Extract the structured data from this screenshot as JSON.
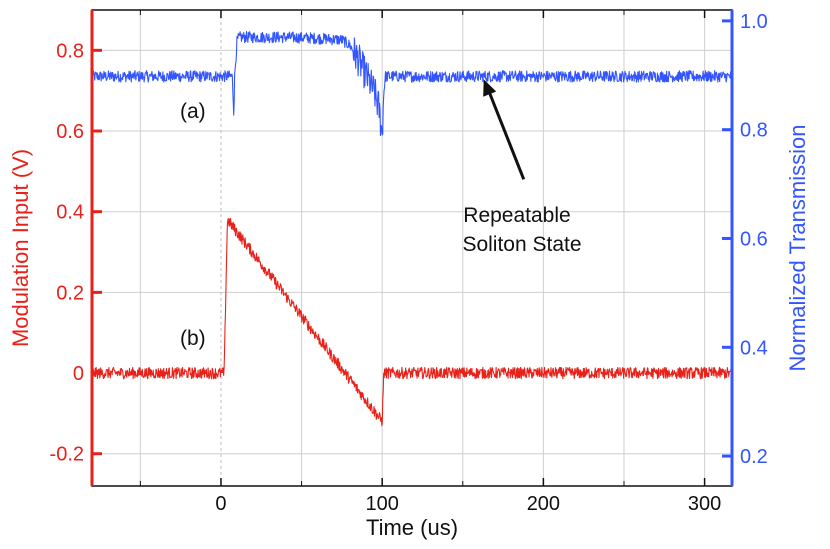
{
  "chart_data": {
    "type": "line",
    "title": "",
    "xlabel": "Time (us)",
    "ylabel_left": "Modulation Input (V)",
    "ylabel_right": "Normalized Transmission",
    "xlim": [
      -80,
      317
    ],
    "ylim_left": [
      -0.28,
      0.9
    ],
    "ylim_right": [
      0.145,
      1.02
    ],
    "x_ticks": [
      0,
      100,
      200,
      300
    ],
    "x_tick_labels": [
      "0",
      "100",
      "200",
      "300"
    ],
    "y_left_ticks": [
      -0.2,
      0,
      0.2,
      0.4,
      0.6,
      0.8
    ],
    "y_left_tick_labels": [
      "-0.2",
      "0",
      "0.2",
      "0.4",
      "0.6",
      "0.8"
    ],
    "y_right_ticks": [
      0.2,
      0.4,
      0.6,
      0.8,
      1.0
    ],
    "y_right_tick_labels": [
      "0.2",
      "0.4",
      "0.6",
      "0.8",
      "1.0"
    ],
    "grid": true,
    "series": [
      {
        "name": "Normalized Transmission",
        "label": "(a)",
        "axis": "right",
        "color": "#3355ff",
        "x": [
          -80,
          7,
          8,
          8.5,
          10,
          12,
          20,
          40,
          60,
          75,
          80,
          85,
          90,
          95,
          98,
          100,
          101,
          102,
          105,
          150,
          317
        ],
        "y": [
          0.898,
          0.898,
          0.83,
          0.9,
          0.965,
          0.97,
          0.97,
          0.97,
          0.968,
          0.965,
          0.955,
          0.93,
          0.9,
          0.87,
          0.84,
          0.79,
          0.87,
          0.898,
          0.898,
          0.898,
          0.898
        ]
      },
      {
        "name": "Modulation Input",
        "label": "(b)",
        "axis": "left",
        "color": "#e8221a",
        "x": [
          -80,
          2,
          3,
          4,
          100,
          101,
          317
        ],
        "y": [
          0,
          0,
          0.2,
          0.38,
          -0.12,
          0,
          0
        ]
      }
    ],
    "annotations": [
      {
        "text_lines": [
          "Repeatable",
          "Soliton State"
        ],
        "arrow_to_x": 163,
        "arrow_to_y_right": 0.9
      }
    ]
  },
  "colors": {
    "left_axis": "#e8221a",
    "right_axis": "#3355ff",
    "frame": "#111111"
  }
}
